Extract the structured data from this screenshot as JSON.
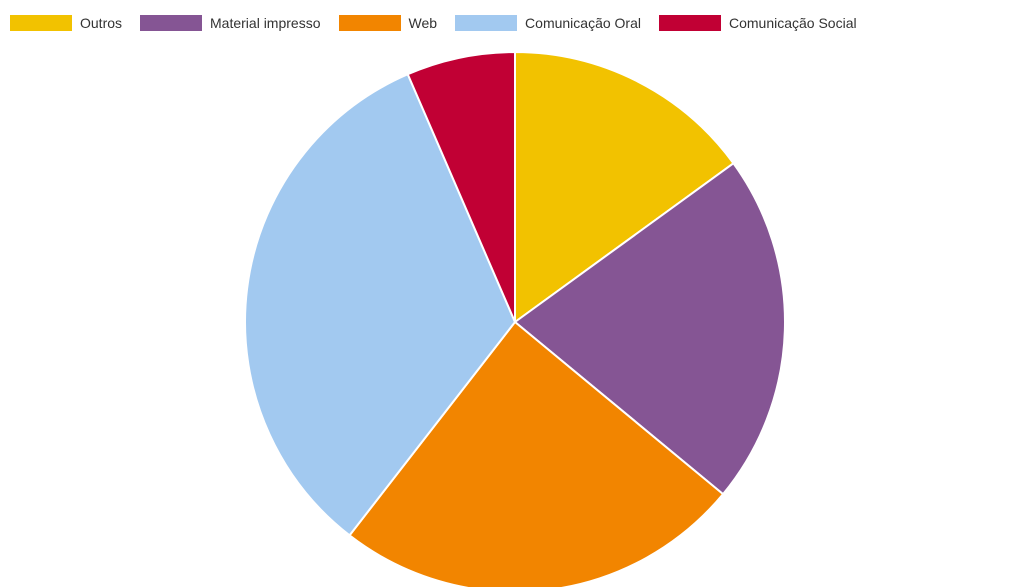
{
  "chart_data": {
    "type": "pie",
    "legend_position": "top-left",
    "start_angle": "12 o'clock, clockwise",
    "slices": [
      {
        "label": "Outros",
        "value": 15,
        "color": "#f2c200"
      },
      {
        "label": "Material impresso",
        "value": 21,
        "color": "#855594"
      },
      {
        "label": "Web",
        "value": 24.5,
        "color": "#f28500"
      },
      {
        "label": "Comunicação Oral",
        "value": 33,
        "color": "#a2c9f0"
      },
      {
        "label": "Comunicação Social",
        "value": 6.5,
        "color": "#c10034"
      }
    ]
  }
}
